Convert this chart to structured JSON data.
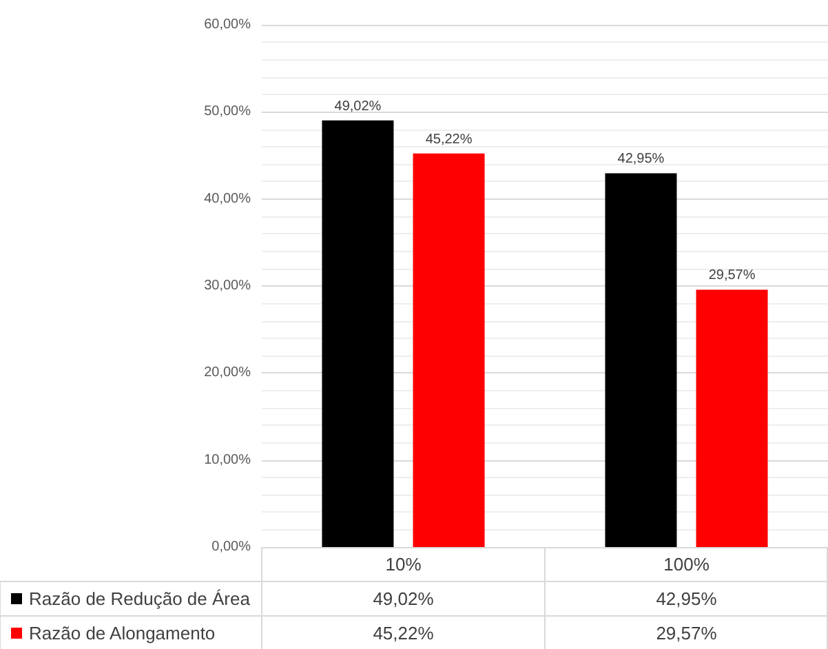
{
  "chart_data": {
    "type": "bar",
    "categories": [
      "10%",
      "100%"
    ],
    "series": [
      {
        "name": "Razão de Redução de Área",
        "color": "#000000",
        "values": [
          49.02,
          42.95
        ],
        "value_labels": [
          "49,02%",
          "42,95%"
        ]
      },
      {
        "name": "Razão de Alongamento",
        "color": "#ff0000",
        "values": [
          45.22,
          29.57
        ],
        "value_labels": [
          "45,22%",
          "29,57%"
        ]
      }
    ],
    "ylim": [
      0,
      60
    ],
    "yticks": [
      {
        "value": 0,
        "label": "0,00%"
      },
      {
        "value": 10,
        "label": "10,00%"
      },
      {
        "value": 20,
        "label": "20,00%"
      },
      {
        "value": 30,
        "label": "30,00%"
      },
      {
        "value": 40,
        "label": "40,00%"
      },
      {
        "value": 50,
        "label": "50,00%"
      },
      {
        "value": 60,
        "label": "60,00%"
      }
    ],
    "grid": "y",
    "legend": "bottom"
  }
}
